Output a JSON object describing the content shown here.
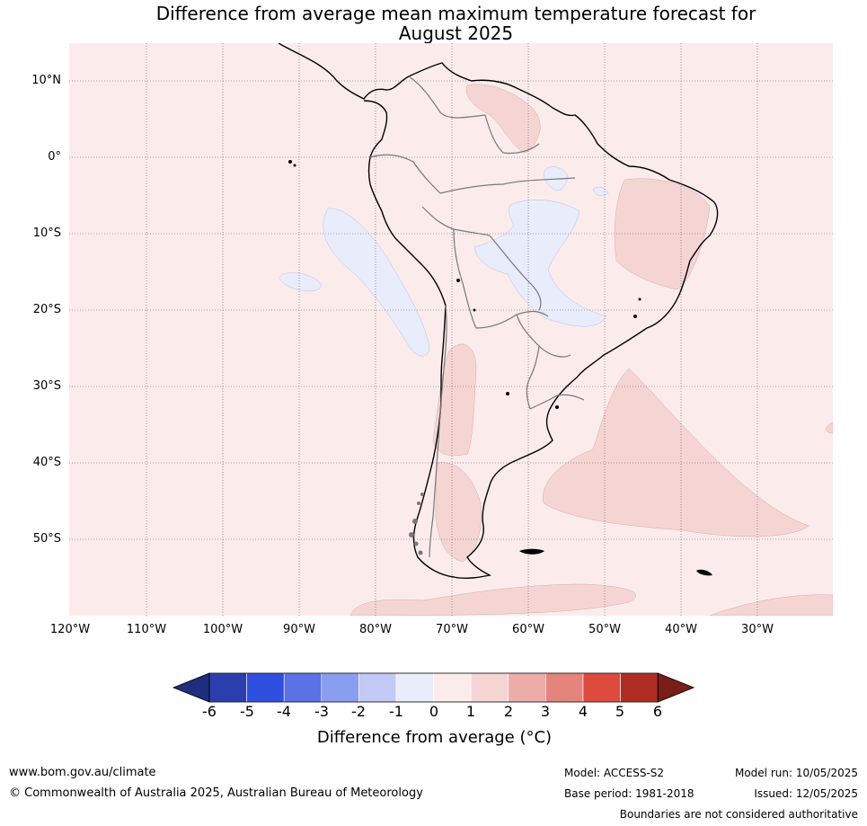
{
  "title_line1": "Difference from average mean maximum temperature forecast for",
  "title_line2": "August 2025",
  "lat_labels": [
    "10°N",
    "0°",
    "10°S",
    "20°S",
    "30°S",
    "40°S",
    "50°S"
  ],
  "lon_labels": [
    "120°W",
    "110°W",
    "100°W",
    "90°W",
    "80°W",
    "70°W",
    "60°W",
    "50°W",
    "40°W",
    "30°W"
  ],
  "colorbar": {
    "ticks": [
      "-6",
      "-5",
      "-4",
      "-3",
      "-2",
      "-1",
      "0",
      "1",
      "2",
      "3",
      "4",
      "5",
      "6"
    ],
    "colors": [
      "#2a3eae",
      "#2f4fe0",
      "#5a72e6",
      "#8a9ef0",
      "#c2c9f4",
      "#e8ecfb",
      "#fbeceb",
      "#f5d5d4",
      "#ecaca8",
      "#e4847c",
      "#dd4b3e",
      "#ae2c22"
    ],
    "under_color": "#1f2d7e",
    "over_color": "#7a1c18",
    "label": "Difference from average (°C)"
  },
  "footer": {
    "url": "www.bom.gov.au/climate",
    "copyright": "© Commonwealth of Australia 2025, Australian Bureau of Meteorology",
    "model": "Model: ACCESS-S2",
    "base_period": "Base period: 1981-2018",
    "model_run": "Model run: 10/05/2025",
    "issued": "Issued: 12/05/2025",
    "disclaimer": "Boundaries are not considered authoritative"
  }
}
